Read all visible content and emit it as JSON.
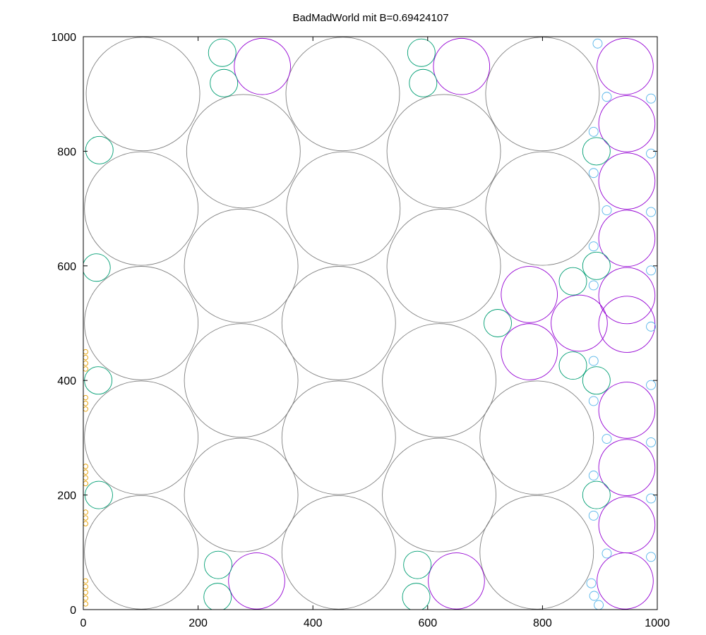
{
  "chart_data": {
    "type": "scatter",
    "title": "BadMadWorld mit B=0.69424107",
    "xlabel": "",
    "ylabel": "",
    "xlim": [
      0,
      1000
    ],
    "ylim": [
      0,
      1000
    ],
    "xticks": [
      0,
      200,
      400,
      600,
      800,
      1000
    ],
    "yticks": [
      0,
      200,
      400,
      600,
      800,
      1000
    ],
    "grid": false,
    "legend": "none",
    "series": [
      {
        "color": "#808080",
        "circles": [
          [
            104,
            900,
            99
          ],
          [
            279,
            800,
            99
          ],
          [
            452,
            900,
            99
          ],
          [
            628,
            800,
            99
          ],
          [
            800,
            900,
            99
          ],
          [
            101,
            700,
            99
          ],
          [
            453,
            700,
            99
          ],
          [
            800,
            700,
            99
          ],
          [
            275,
            600,
            99
          ],
          [
            628,
            600,
            99
          ],
          [
            101,
            500,
            99
          ],
          [
            445,
            500,
            99
          ],
          [
            275,
            400,
            99
          ],
          [
            620,
            400,
            99
          ],
          [
            101,
            300,
            99
          ],
          [
            445,
            300,
            99
          ],
          [
            790,
            300,
            99
          ],
          [
            275,
            200,
            99
          ],
          [
            620,
            200,
            99
          ],
          [
            101,
            100,
            99
          ],
          [
            445,
            100,
            99
          ],
          [
            790,
            100,
            99
          ]
        ]
      },
      {
        "color": "#9400d3",
        "circles": [
          [
            312,
            948,
            49
          ],
          [
            659,
            948,
            49
          ],
          [
            944,
            948,
            49
          ],
          [
            947,
            848,
            49
          ],
          [
            947,
            748,
            49
          ],
          [
            947,
            648,
            49
          ],
          [
            777,
            550,
            49
          ],
          [
            947,
            548,
            49
          ],
          [
            864,
            500,
            49
          ],
          [
            947,
            498,
            49
          ],
          [
            777,
            450,
            49
          ],
          [
            947,
            348,
            49
          ],
          [
            947,
            248,
            49
          ],
          [
            947,
            148,
            49
          ],
          [
            302,
            50,
            49
          ],
          [
            650,
            50,
            49
          ],
          [
            944,
            50,
            49
          ]
        ]
      },
      {
        "color": "#009e73",
        "circles": [
          [
            242,
            972,
            24
          ],
          [
            245,
            919,
            24
          ],
          [
            589,
            972,
            24
          ],
          [
            592,
            919,
            24
          ],
          [
            28,
            802,
            24
          ],
          [
            894,
            800,
            24
          ],
          [
            23,
            597,
            24
          ],
          [
            853,
            573,
            24
          ],
          [
            894,
            600,
            24
          ],
          [
            722,
            500,
            24
          ],
          [
            853,
            426,
            24
          ],
          [
            26,
            400,
            24
          ],
          [
            894,
            400,
            24
          ],
          [
            27,
            200,
            24
          ],
          [
            894,
            200,
            24
          ],
          [
            235,
            78,
            24
          ],
          [
            582,
            78,
            24
          ],
          [
            234,
            22,
            24
          ],
          [
            580,
            22,
            24
          ]
        ]
      },
      {
        "color": "#56b4e9",
        "circles": [
          [
            896,
            988,
            8
          ],
          [
            912,
            895,
            8
          ],
          [
            989,
            892,
            8
          ],
          [
            889,
            834,
            8
          ],
          [
            989,
            796,
            8
          ],
          [
            889,
            762,
            8
          ],
          [
            912,
            697,
            8
          ],
          [
            989,
            694,
            8
          ],
          [
            889,
            634,
            8
          ],
          [
            989,
            592,
            8
          ],
          [
            889,
            566,
            8
          ],
          [
            989,
            494,
            8
          ],
          [
            889,
            434,
            8
          ],
          [
            989,
            392,
            8
          ],
          [
            889,
            364,
            8
          ],
          [
            912,
            298,
            8
          ],
          [
            989,
            292,
            8
          ],
          [
            889,
            234,
            8
          ],
          [
            989,
            194,
            8
          ],
          [
            889,
            164,
            8
          ],
          [
            912,
            98,
            8
          ],
          [
            989,
            92,
            8
          ],
          [
            885,
            46,
            8
          ],
          [
            890,
            24,
            8
          ],
          [
            898,
            8,
            8
          ]
        ]
      },
      {
        "color": "#e69f00",
        "circles": [
          [
            4,
            450,
            4
          ],
          [
            4,
            440,
            4
          ],
          [
            4,
            430,
            4
          ],
          [
            4,
            420,
            4
          ],
          [
            4,
            370,
            4
          ],
          [
            4,
            360,
            4
          ],
          [
            4,
            350,
            4
          ],
          [
            4,
            250,
            4
          ],
          [
            4,
            240,
            4
          ],
          [
            4,
            230,
            4
          ],
          [
            4,
            220,
            4
          ],
          [
            4,
            170,
            4
          ],
          [
            4,
            160,
            4
          ],
          [
            4,
            150,
            4
          ],
          [
            4,
            50,
            4
          ],
          [
            4,
            40,
            4
          ],
          [
            4,
            30,
            4
          ],
          [
            4,
            20,
            4
          ],
          [
            4,
            10,
            4
          ]
        ]
      }
    ]
  }
}
